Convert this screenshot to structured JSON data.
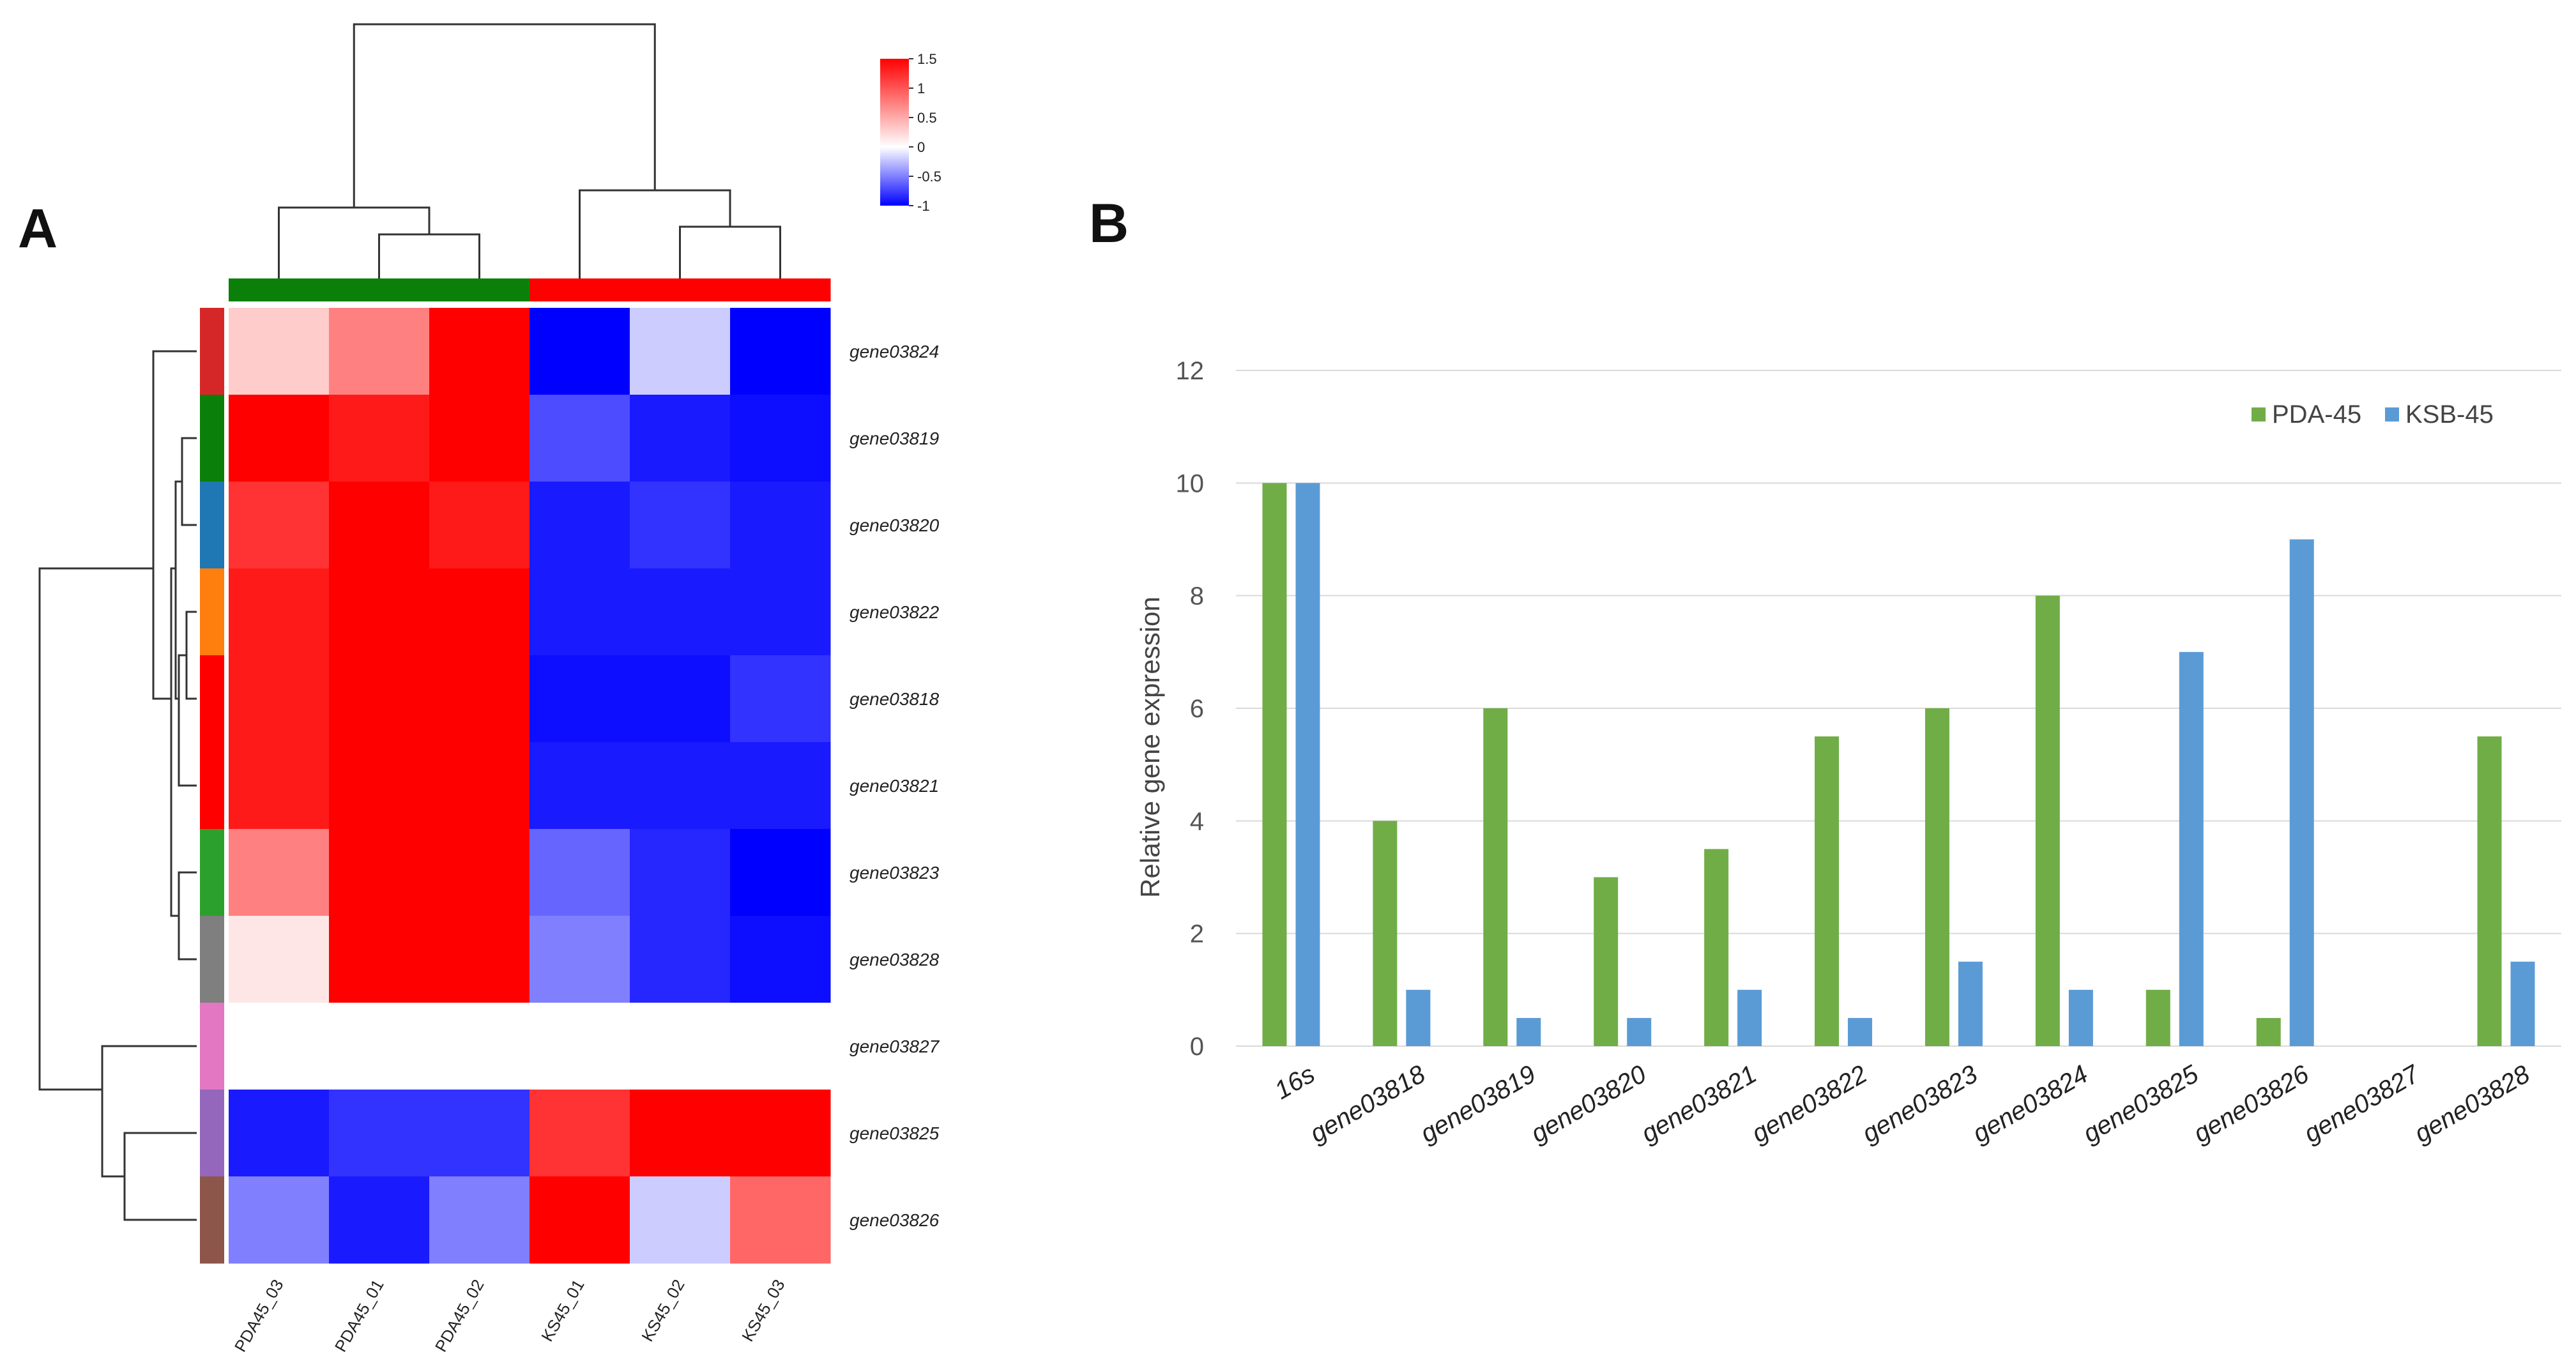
{
  "panels": {
    "a": "A",
    "b": "B"
  },
  "colors": {
    "hm_high": "#ff0000",
    "hm_mid": "#ffffff",
    "hm_low": "#0000ff",
    "group_pda": "#0a800a",
    "group_ks": "#ff0000",
    "pda45": "#70ad47",
    "ksb45": "#5b9bd5",
    "grid": "#d9d9d9",
    "row_clusters": [
      "#d62728",
      "#0a800a",
      "#1f77b4",
      "#ff7f0e",
      "#ff0000",
      "#ff0000",
      "#2ca02c",
      "#7f7f7f",
      "#e377c2",
      "#9467bd",
      "#8c564b"
    ]
  },
  "chart_data": [
    {
      "type": "heatmap",
      "title": "",
      "rows": [
        "gene03824",
        "gene03819",
        "gene03820",
        "gene03822",
        "gene03818",
        "gene03821",
        "gene03823",
        "gene03828",
        "gene03827",
        "gene03825",
        "gene03826"
      ],
      "columns": [
        "PDA45_03",
        "PDA45_01",
        "PDA45_02",
        "KS45_01",
        "KS45_02",
        "KS45_03"
      ],
      "column_groups": [
        "PDA45",
        "PDA45",
        "PDA45",
        "KS45",
        "KS45",
        "KS45"
      ],
      "values": [
        [
          0.2,
          0.5,
          1.6,
          -1.0,
          -0.2,
          -1.0
        ],
        [
          1.0,
          0.9,
          1.0,
          -0.7,
          -0.9,
          -0.95
        ],
        [
          0.8,
          1.2,
          0.9,
          -0.9,
          -0.8,
          -0.9
        ],
        [
          0.9,
          1.0,
          1.1,
          -0.9,
          -0.9,
          -0.9
        ],
        [
          0.9,
          1.0,
          1.0,
          -0.95,
          -0.95,
          -0.8
        ],
        [
          0.9,
          1.0,
          1.0,
          -0.9,
          -0.9,
          -0.9
        ],
        [
          0.5,
          1.1,
          1.05,
          -0.6,
          -0.85,
          -1.0
        ],
        [
          0.1,
          1.3,
          1.1,
          -0.5,
          -0.85,
          -0.95
        ],
        [
          0,
          0,
          0,
          0,
          0,
          0
        ],
        [
          -0.9,
          -0.8,
          -0.8,
          0.8,
          1.1,
          1.0
        ],
        [
          -0.5,
          -0.9,
          -0.5,
          1.9,
          -0.2,
          0.6
        ]
      ],
      "color_scale": {
        "min": -1,
        "max": 1.5,
        "ticks": [
          1.5,
          1,
          0.5,
          0,
          -0.5,
          -1
        ],
        "tick_labels": [
          "1.5",
          "1",
          "0.5",
          "0",
          "-0.5",
          "-1"
        ]
      }
    },
    {
      "type": "bar",
      "title": "",
      "xlabel": "",
      "ylabel": "Relative gene expression",
      "categories": [
        "16s",
        "gene03818",
        "gene03819",
        "gene03820",
        "gene03821",
        "gene03822",
        "gene03823",
        "gene03824",
        "gene03825",
        "gene03826",
        "gene03827",
        "gene03828"
      ],
      "series": [
        {
          "name": "PDA-45",
          "values": [
            10,
            4,
            6,
            3,
            3.5,
            5.5,
            6,
            8,
            1,
            0.5,
            0,
            5.5
          ]
        },
        {
          "name": "KSB-45",
          "values": [
            10,
            1,
            0.5,
            0.5,
            1,
            0.5,
            1.5,
            1,
            7,
            9,
            0,
            1.5
          ]
        }
      ],
      "ylim": [
        0,
        12
      ],
      "yticks": [
        0,
        2,
        4,
        6,
        8,
        10,
        12
      ],
      "ytick_labels": [
        "0",
        "2",
        "4",
        "6",
        "8",
        "10",
        "12"
      ],
      "grid": true,
      "legend_position": "top-right"
    }
  ]
}
